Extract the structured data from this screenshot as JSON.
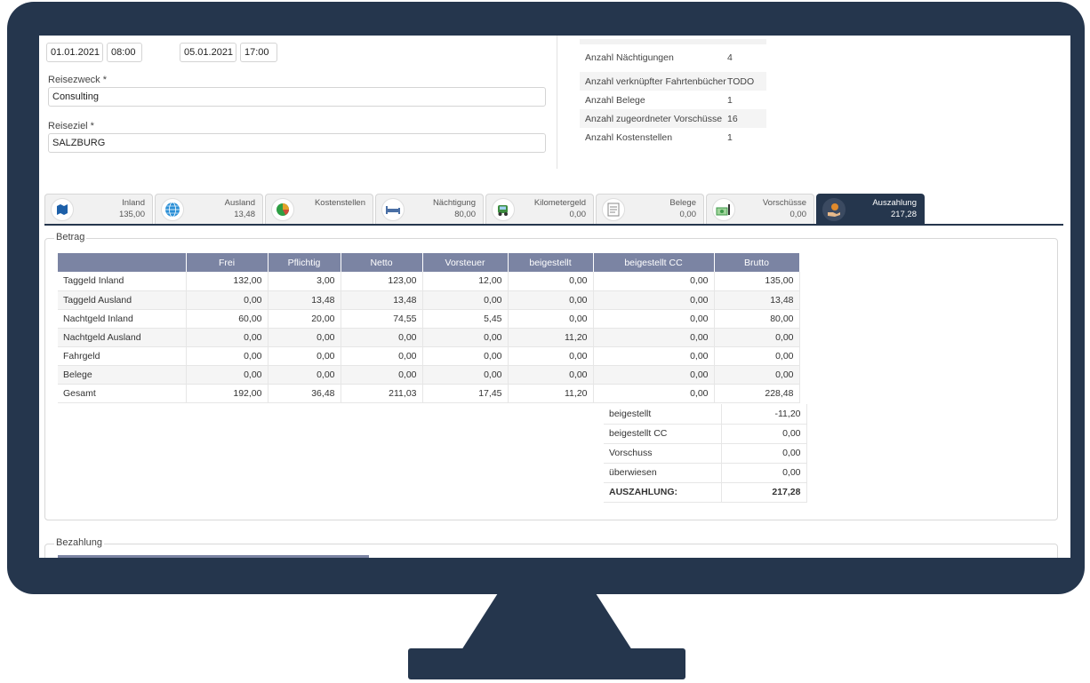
{
  "form": {
    "start_date": "01.01.2021",
    "start_time": "08:00",
    "end_date": "05.01.2021",
    "end_time": "17:00",
    "reisezweck_label": "Reisezweck *",
    "reisezweck_value": "Consulting",
    "reiseziel_label": "Reiseziel *",
    "reiseziel_value": "SALZBURG"
  },
  "info": [
    {
      "label": "Anzahl Nächtigungen",
      "value": "4"
    },
    {
      "label": "Anzahl verknüpfter Fahrtenbücher",
      "value": "TODO"
    },
    {
      "label": "Anzahl Belege",
      "value": "1"
    },
    {
      "label": "Anzahl zugeordneter Vorschüsse",
      "value": "16"
    },
    {
      "label": "Anzahl Kostenstellen",
      "value": "1"
    }
  ],
  "tabs": [
    {
      "name": "Inland",
      "amount": "135,00",
      "icon": "map-icon",
      "color": "#1c5fa8"
    },
    {
      "name": "Ausland",
      "amount": "13,48",
      "icon": "globe-icon",
      "color": "#2a8fd6"
    },
    {
      "name": "Kostenstellen",
      "amount": "",
      "icon": "pie-chart-icon",
      "color": "#2e9e44"
    },
    {
      "name": "Nächtigung",
      "amount": "80,00",
      "icon": "bed-icon",
      "color": "#4a6fa5"
    },
    {
      "name": "Kilometergeld",
      "amount": "0,00",
      "icon": "car-icon",
      "color": "#3d8c3f"
    },
    {
      "name": "Belege",
      "amount": "0,00",
      "icon": "receipt-icon",
      "color": "#8a8a8a"
    },
    {
      "name": "Vorschüsse",
      "amount": "0,00",
      "icon": "money-icon",
      "color": "#3c9a4a"
    },
    {
      "name": "Auszahlung",
      "amount": "217,28",
      "icon": "coin-hand-icon",
      "color": "#e08a2c",
      "active": true
    }
  ],
  "betrag": {
    "legend": "Betrag",
    "columns": [
      "",
      "Frei",
      "Pflichtig",
      "Netto",
      "Vorsteuer",
      "beigestellt",
      "beigestellt CC",
      "Brutto"
    ],
    "rows": [
      [
        "Taggeld Inland",
        "132,00",
        "3,00",
        "123,00",
        "12,00",
        "0,00",
        "0,00",
        "135,00"
      ],
      [
        "Taggeld Ausland",
        "0,00",
        "13,48",
        "13,48",
        "0,00",
        "0,00",
        "0,00",
        "13,48"
      ],
      [
        "Nachtgeld Inland",
        "60,00",
        "20,00",
        "74,55",
        "5,45",
        "0,00",
        "0,00",
        "80,00"
      ],
      [
        "Nachtgeld Ausland",
        "0,00",
        "0,00",
        "0,00",
        "0,00",
        "11,20",
        "0,00",
        "0,00"
      ],
      [
        "Fahrgeld",
        "0,00",
        "0,00",
        "0,00",
        "0,00",
        "0,00",
        "0,00",
        "0,00"
      ],
      [
        "Belege",
        "0,00",
        "0,00",
        "0,00",
        "0,00",
        "0,00",
        "0,00",
        "0,00"
      ],
      [
        "Gesamt",
        "192,00",
        "36,48",
        "211,03",
        "17,45",
        "11,20",
        "0,00",
        "228,48"
      ]
    ],
    "summary": [
      {
        "label": "beigestellt",
        "value": "-11,20"
      },
      {
        "label": "beigestellt CC",
        "value": "0,00"
      },
      {
        "label": "Vorschuss",
        "value": "0,00"
      },
      {
        "label": "überwiesen",
        "value": "0,00"
      },
      {
        "label": "AUSZAHLUNG:",
        "value": "217,28",
        "bold": true
      }
    ]
  },
  "bezahlung": {
    "legend": "Bezahlung"
  }
}
